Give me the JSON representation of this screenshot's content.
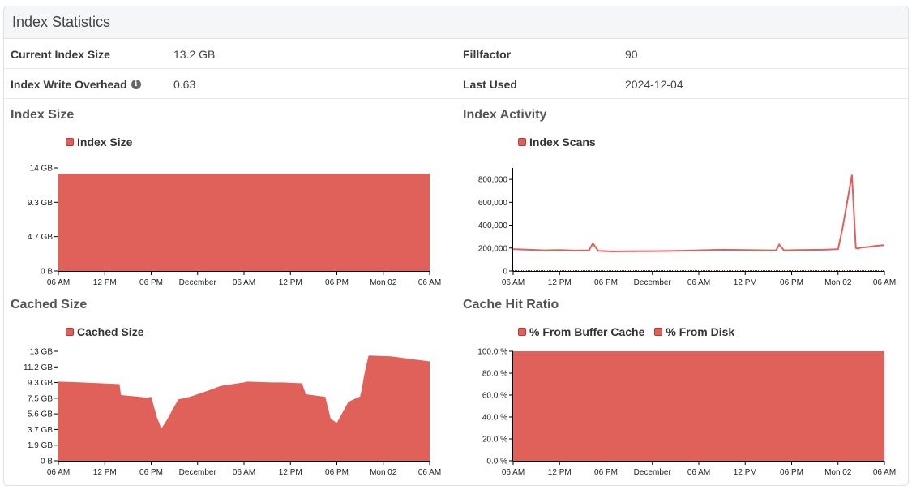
{
  "panel": {
    "title": "Index Statistics"
  },
  "stats": {
    "current_index_size_label": "Current Index Size",
    "current_index_size_value": "13.2 GB",
    "fillfactor_label": "Fillfactor",
    "fillfactor_value": "90",
    "write_overhead_label": "Index Write Overhead",
    "write_overhead_value": "0.63",
    "last_used_label": "Last Used",
    "last_used_value": "2024-12-04",
    "info_icon": "info-icon"
  },
  "colors": {
    "fill": "#e0605a",
    "stroke": "#a8403a"
  },
  "chart_data": [
    {
      "id": "index_size",
      "type": "area",
      "title": "Index Size",
      "legend": [
        "Index Size"
      ],
      "x_ticks": [
        "06 AM",
        "12 PM",
        "06 PM",
        "December",
        "06 AM",
        "12 PM",
        "06 PM",
        "Mon 02",
        "06 AM"
      ],
      "y_ticks": [
        "0 B",
        "4.7 GB",
        "9.3 GB",
        "14 GB"
      ],
      "ylim": [
        0,
        14
      ],
      "series": [
        {
          "name": "Index Size",
          "x": [
            0,
            48
          ],
          "y": [
            13.2,
            13.2
          ]
        }
      ]
    },
    {
      "id": "index_activity",
      "type": "line",
      "title": "Index Activity",
      "legend": [
        "Index Scans"
      ],
      "x_ticks": [
        "06 AM",
        "12 PM",
        "06 PM",
        "December",
        "06 AM",
        "12 PM",
        "06 PM",
        "Mon 02",
        "06 AM"
      ],
      "y_ticks": [
        "0",
        "200,000",
        "400,000",
        "600,000",
        "800,000"
      ],
      "ylim": [
        0,
        900000
      ],
      "series": [
        {
          "name": "Index Scans",
          "x": [
            0,
            2,
            4,
            6,
            8,
            9.8,
            10.3,
            11,
            13,
            15,
            18,
            21,
            24,
            27,
            30,
            33,
            34,
            34.4,
            35,
            37,
            40,
            42,
            42.6,
            43.3,
            43.8,
            44.3,
            44.6,
            45,
            46,
            47,
            48
          ],
          "y": [
            190000,
            185000,
            180000,
            182000,
            178000,
            180000,
            240000,
            175000,
            170000,
            172000,
            173000,
            175000,
            180000,
            185000,
            182000,
            180000,
            180000,
            230000,
            180000,
            182000,
            185000,
            190000,
            380000,
            650000,
            840000,
            200000,
            195000,
            205000,
            210000,
            220000,
            225000
          ]
        }
      ]
    },
    {
      "id": "cached_size",
      "type": "area",
      "title": "Cached Size",
      "legend": [
        "Cached Size"
      ],
      "x_ticks": [
        "06 AM",
        "12 PM",
        "06 PM",
        "December",
        "06 AM",
        "12 PM",
        "06 PM",
        "Mon 02",
        "06 AM"
      ],
      "y_ticks": [
        "0 B",
        "1.9 GB",
        "3.7 GB",
        "5.6 GB",
        "7.5 GB",
        "9.3 GB",
        "11.2 GB",
        "13 GB"
      ],
      "ylim": [
        0,
        13
      ],
      "series": [
        {
          "name": "Cached Size",
          "x": [
            0,
            3,
            7.9,
            8.1,
            11.5,
            12,
            12.8,
            13,
            13.3,
            14,
            15.5,
            17,
            19,
            21,
            24,
            24.4,
            27.5,
            29,
            31.5,
            32,
            34.5,
            35.2,
            36,
            37.5,
            38.9,
            39,
            39.2,
            39.6,
            40.1,
            43,
            48
          ],
          "y": [
            9.4,
            9.3,
            9.1,
            7.8,
            7.5,
            7.6,
            5.0,
            4.6,
            3.8,
            4.8,
            7.3,
            7.6,
            8.2,
            8.9,
            9.3,
            9.4,
            9.3,
            9.3,
            9.2,
            7.9,
            7.6,
            5.0,
            4.5,
            7.0,
            7.6,
            7.6,
            8.4,
            10.5,
            12.5,
            12.4,
            11.8
          ]
        }
      ]
    },
    {
      "id": "cache_hit_ratio",
      "type": "area",
      "title": "Cache Hit Ratio",
      "legend": [
        "% From Buffer Cache",
        "% From Disk"
      ],
      "x_ticks": [
        "06 AM",
        "12 PM",
        "06 PM",
        "December",
        "06 AM",
        "12 PM",
        "06 PM",
        "Mon 02",
        "06 AM"
      ],
      "y_ticks": [
        "0.0 %",
        "20.0 %",
        "40.0 %",
        "60.0 %",
        "80.0 %",
        "100.0 %"
      ],
      "ylim": [
        0,
        100
      ],
      "series": [
        {
          "name": "% From Buffer Cache",
          "x": [
            0,
            48
          ],
          "y": [
            100,
            100
          ]
        },
        {
          "name": "% From Disk",
          "x": [
            0,
            48
          ],
          "y": [
            0,
            0
          ]
        }
      ]
    }
  ]
}
